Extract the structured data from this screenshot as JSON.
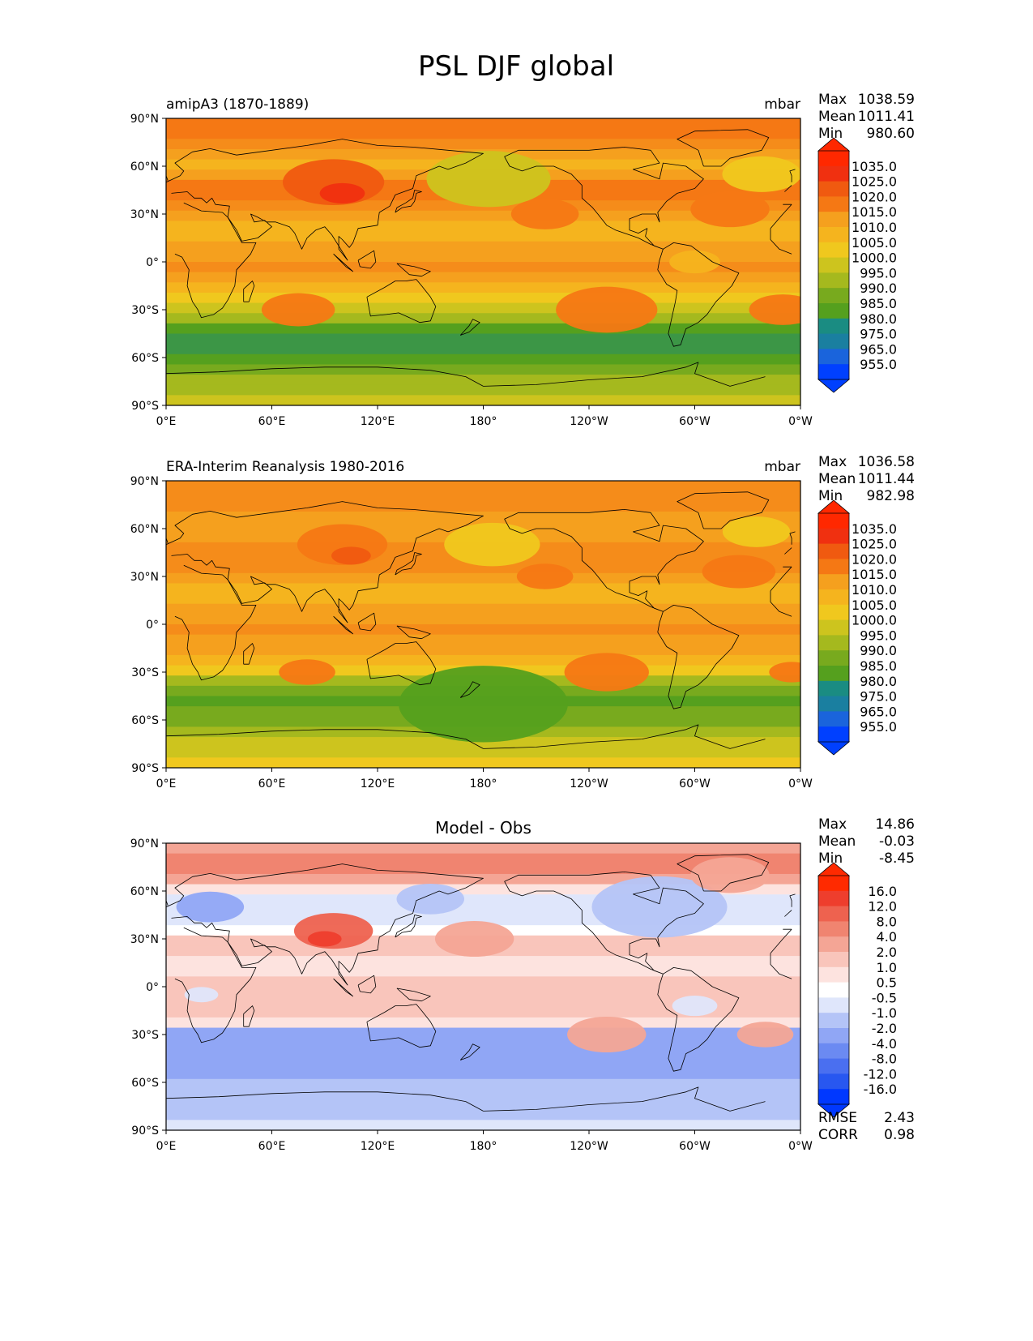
{
  "figure": {
    "title": "PSL DJF global"
  },
  "colors": {
    "field": [
      "#0040ff",
      "#1a64dc",
      "#1a7fa0",
      "#1a8c82",
      "#3c9646",
      "#55a01e",
      "#78aa1e",
      "#a5b91e",
      "#cdc41e",
      "#f0c81e",
      "#f5b41e",
      "#f5a01e",
      "#f58c1a",
      "#f57814",
      "#f05a10",
      "#f03010",
      "#ff2800"
    ],
    "diff": [
      "#0038ff",
      "#2857f0",
      "#4a6ff0",
      "#6b8af2",
      "#90a6f5",
      "#b4c4f7",
      "#dfe6fb",
      "#ffffff",
      "#fde3df",
      "#f9c5bb",
      "#f4a595",
      "#f08470",
      "#ee624f",
      "#ee3e2d",
      "#ff2a00"
    ],
    "coastline": "#000000"
  },
  "axes": {
    "lat_ticks": [
      "90°N",
      "60°N",
      "30°N",
      "0°",
      "30°S",
      "60°S",
      "90°S"
    ],
    "lon_ticks": [
      "0°E",
      "60°E",
      "120°E",
      "180°",
      "120°W",
      "60°W",
      "0°W"
    ]
  },
  "panels": [
    {
      "left_title": "amipA3 (1870-1889)",
      "center_title": "",
      "right_title": "mbar",
      "stats": [
        {
          "label": "Max",
          "value": "1038.59"
        },
        {
          "label": "Mean",
          "value": "1011.41"
        },
        {
          "label": "Min",
          "value": "980.60"
        }
      ],
      "colorbar": [
        "1035.0",
        "1025.0",
        "1020.0",
        "1015.0",
        "1010.0",
        "1005.0",
        "1000.0",
        "995.0",
        "990.0",
        "985.0",
        "980.0",
        "975.0",
        "965.0",
        "955.0"
      ],
      "palette": "field",
      "zonal_levels": [
        13,
        13,
        12,
        11,
        10,
        11,
        13,
        13,
        12,
        11,
        10,
        10,
        11,
        11,
        12,
        11,
        10,
        9,
        8,
        7,
        5,
        4,
        4,
        5,
        6,
        7,
        7,
        8
      ],
      "blobs": [
        {
          "lat": 50,
          "lon": 95,
          "r": 18,
          "level": 14
        },
        {
          "lat": 43,
          "lon": 100,
          "r": 8,
          "level": 15
        },
        {
          "lat": 52,
          "lon": 183,
          "r": 22,
          "level": 8
        },
        {
          "lat": 55,
          "lon": 338,
          "r": 14,
          "level": 9
        },
        {
          "lat": -30,
          "lon": 75,
          "r": 13,
          "level": 13
        },
        {
          "lat": -30,
          "lon": 250,
          "r": 18,
          "level": 13
        },
        {
          "lat": -30,
          "lon": 350,
          "r": 12,
          "level": 13
        },
        {
          "lat": 30,
          "lon": 215,
          "r": 12,
          "level": 13
        },
        {
          "lat": 33,
          "lon": 320,
          "r": 14,
          "level": 13
        },
        {
          "lat": 0,
          "lon": 300,
          "r": 9,
          "level": 10
        }
      ],
      "rmse": null
    },
    {
      "left_title": "ERA-Interim Reanalysis 1980-2016",
      "center_title": "",
      "right_title": "mbar",
      "stats": [
        {
          "label": "Max",
          "value": "1036.58"
        },
        {
          "label": "Mean",
          "value": "1011.44"
        },
        {
          "label": "Min",
          "value": "982.98"
        }
      ],
      "colorbar": [
        "1035.0",
        "1025.0",
        "1020.0",
        "1015.0",
        "1010.0",
        "1005.0",
        "1000.0",
        "995.0",
        "990.0",
        "985.0",
        "980.0",
        "975.0",
        "965.0",
        "955.0"
      ],
      "palette": "field",
      "zonal_levels": [
        12,
        12,
        12,
        11,
        11,
        11,
        12,
        12,
        12,
        11,
        10,
        10,
        11,
        11,
        12,
        11,
        11,
        10,
        9,
        7,
        6,
        5,
        6,
        6,
        7,
        8,
        8,
        9
      ],
      "blobs": [
        {
          "lat": 50,
          "lon": 100,
          "r": 16,
          "level": 13
        },
        {
          "lat": 43,
          "lon": 105,
          "r": 7,
          "level": 14
        },
        {
          "lat": 50,
          "lon": 185,
          "r": 17,
          "level": 9
        },
        {
          "lat": 58,
          "lon": 335,
          "r": 12,
          "level": 9
        },
        {
          "lat": -30,
          "lon": 80,
          "r": 10,
          "level": 13
        },
        {
          "lat": -30,
          "lon": 250,
          "r": 15,
          "level": 13
        },
        {
          "lat": -30,
          "lon": 355,
          "r": 8,
          "level": 13
        },
        {
          "lat": 30,
          "lon": 215,
          "r": 10,
          "level": 13
        },
        {
          "lat": 33,
          "lon": 325,
          "r": 13,
          "level": 13
        },
        {
          "lat": -50,
          "lon": 180,
          "r": 30,
          "level": 5
        }
      ],
      "rmse": null
    },
    {
      "left_title": "",
      "center_title": "Model - Obs",
      "right_title": "",
      "stats": [
        {
          "label": "Max",
          "value": "14.86"
        },
        {
          "label": "Mean",
          "value": "-0.03"
        },
        {
          "label": "Min",
          "value": "-8.45"
        }
      ],
      "colorbar": [
        "16.0",
        "12.0",
        "8.0",
        "4.0",
        "2.0",
        "1.0",
        "0.5",
        "-0.5",
        "-1.0",
        "-2.0",
        "-4.0",
        "-8.0",
        "-12.0",
        "-16.0"
      ],
      "palette": "diff",
      "zonal_levels": [
        10,
        11,
        11,
        10,
        8,
        6,
        6,
        6,
        7,
        9,
        9,
        8,
        8,
        9,
        9,
        9,
        9,
        8,
        4,
        4,
        4,
        4,
        4,
        5,
        5,
        5,
        5,
        6
      ],
      "blobs": [
        {
          "lat": 35,
          "lon": 95,
          "r": 14,
          "level": 12
        },
        {
          "lat": 30,
          "lon": 90,
          "r": 6,
          "level": 13
        },
        {
          "lat": 50,
          "lon": 25,
          "r": 12,
          "level": 4
        },
        {
          "lat": 55,
          "lon": 150,
          "r": 12,
          "level": 5
        },
        {
          "lat": 50,
          "lon": 280,
          "r": 24,
          "level": 5
        },
        {
          "lat": 70,
          "lon": 320,
          "r": 14,
          "level": 10
        },
        {
          "lat": -30,
          "lon": 250,
          "r": 14,
          "level": 10
        },
        {
          "lat": -30,
          "lon": 340,
          "r": 10,
          "level": 10
        },
        {
          "lat": -5,
          "lon": 20,
          "r": 6,
          "level": 6
        },
        {
          "lat": -12,
          "lon": 300,
          "r": 8,
          "level": 6
        },
        {
          "lat": 30,
          "lon": 175,
          "r": 14,
          "level": 10
        }
      ],
      "rmse": [
        {
          "label": "RMSE",
          "value": "2.43"
        },
        {
          "label": "CORR",
          "value": "0.98"
        }
      ]
    }
  ]
}
